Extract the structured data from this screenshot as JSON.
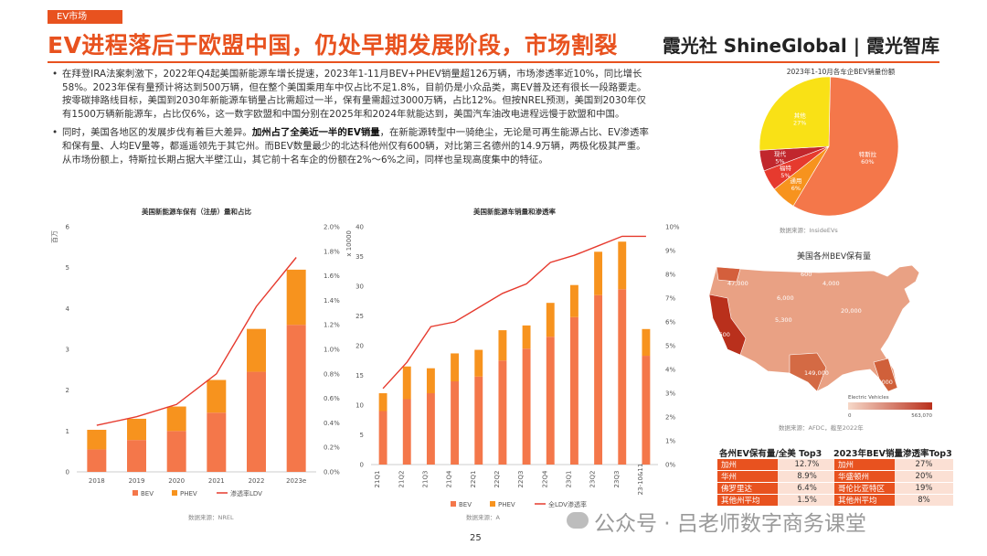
{
  "header": {
    "tag": "EV市场",
    "title": "EV进程落后于欧盟中国，仍处早期发展阶段，市场割裂",
    "brand": "霞光社 ShineGlobal | 霞光智库"
  },
  "bullets": [
    {
      "pre": "在拜登IRA法案刺激下，2022年Q4起美国新能源车增长提速，2023年1-11月BEV+PHEV销量超126万辆，市场渗透率近10%，同比增长58%。2023年保有量预计将达到500万辆，但在整个美国乘用车中仅占比不足1.8%，目前仍是小众品类，离EV普及还有很长一段路要走。按零碳排路线目标，美国到2030年新能源车销量占比需超过一半，保有量需超过3000万辆，占比12%。但按NREL预测，美国到2030年仅有1500万辆新能源车，占比仅6%，这一数字欧盟和中国分别在2025年和2024年就能达到，美国汽车油改电进程远慢于欧盟和中国。",
      "bold": "",
      "post": ""
    },
    {
      "pre": "同时，美国各地区的发展步伐有着巨大差异。",
      "bold": "加州占了全美近一半的EV销量",
      "post": "，在新能源转型中一骑绝尘，无论是可再生能源占比、EV渗透率和保有量、人均EV量等，都遥遥领先于其它州。而BEV数量最少的北达科他州仅有600辆，对比第三名德州的14.9万辆，两极化极其严重。从市场份额上，特斯拉长期占据大半壁江山，其它前十名车企的份额在2%～6%之间，同样也呈现高度集中的特征。"
    }
  ],
  "chart_data": [
    {
      "type": "bar",
      "title": "美国新能源车保有（注册）量和占比",
      "ylabel": "百万",
      "stacked": true,
      "categories": [
        "2018",
        "2019",
        "2020",
        "2021",
        "2022",
        "2023e"
      ],
      "series": [
        {
          "name": "BEV",
          "color": "#f4774a",
          "values": [
            0.55,
            0.78,
            1.0,
            1.45,
            2.45,
            3.6
          ]
        },
        {
          "name": "PHEV",
          "color": "#f7931e",
          "values": [
            0.48,
            0.52,
            0.6,
            0.8,
            1.05,
            1.35
          ]
        },
        {
          "name": "渗透率LDV",
          "color": "#e63a2e",
          "axis": "right",
          "values": [
            0.38,
            0.45,
            0.55,
            0.8,
            1.35,
            1.75
          ]
        }
      ],
      "ylim": [
        0,
        6
      ],
      "y_ticks": [
        "0",
        "1",
        "2",
        "3",
        "4",
        "5",
        "6"
      ],
      "y2lim": [
        0,
        2.0
      ],
      "y2_ticks": [
        "0.0%",
        "0.2%",
        "0.4%",
        "0.6%",
        "0.8%",
        "1.0%",
        "1.2%",
        "1.4%",
        "1.6%",
        "1.8%",
        "2.0%"
      ],
      "legend_position": "bottom",
      "source": "数据来源：NREL"
    },
    {
      "type": "bar",
      "title": "美国新能源车销量和渗透率",
      "ylabel": "x 10000",
      "stacked": true,
      "categories": [
        "21Q1",
        "21Q2",
        "21Q3",
        "21Q4",
        "22Q1",
        "22Q2",
        "22Q3",
        "22Q4",
        "23Q1",
        "23Q2",
        "23Q3",
        "23-10&11"
      ],
      "series": [
        {
          "name": "BEV",
          "color": "#f4774a",
          "values": [
            9.0,
            11.0,
            12.0,
            14.0,
            14.8,
            17.5,
            19.5,
            21.5,
            24.8,
            28.5,
            29.5,
            18.3
          ]
        },
        {
          "name": "PHEV",
          "color": "#f7931e",
          "values": [
            3.0,
            5.5,
            4.2,
            4.7,
            4.5,
            5.1,
            3.9,
            5.7,
            5.4,
            7.3,
            8.0,
            4.5
          ]
        },
        {
          "name": "全LDV渗透率",
          "color": "#e63a2e",
          "axis": "right",
          "values": [
            3.2,
            4.3,
            5.8,
            6.0,
            6.6,
            7.2,
            7.6,
            8.5,
            8.8,
            9.2,
            9.6,
            9.6
          ]
        }
      ],
      "ylim": [
        0,
        40
      ],
      "y_ticks": [
        "0",
        "5",
        "10",
        "15",
        "20",
        "25",
        "30",
        "35",
        "40"
      ],
      "y2lim": [
        0,
        10
      ],
      "y2_ticks": [
        "0%",
        "1%",
        "2%",
        "3%",
        "4%",
        "5%",
        "6%",
        "7%",
        "8%",
        "9%",
        "10%"
      ],
      "legend_position": "bottom",
      "source": "数据来源：A"
    },
    {
      "type": "pie",
      "title": "2023年1-10月各车企BEV销量份额",
      "slices": [
        {
          "label": "特斯拉",
          "value": 60,
          "text": "60%",
          "color": "#f4774a"
        },
        {
          "label": "通用",
          "value": 6,
          "text": "6%",
          "color": "#f7931e"
        },
        {
          "label": "福特",
          "value": 5,
          "text": "5%",
          "color": "#e63a2e"
        },
        {
          "label": "现代",
          "value": 5,
          "text": "5%",
          "color": "#c1272d"
        },
        {
          "label": "其他",
          "value": 27,
          "text": "27%",
          "color": "#f9e116"
        }
      ],
      "source": "数据来源：InsideEVs"
    }
  ],
  "map": {
    "title": "美国各州BEV保有量",
    "labels": [
      "47,000",
      "600",
      "6,000",
      "4,000",
      "5,300",
      "20,000",
      "403,600",
      "149,000",
      "168,000"
    ],
    "legend_label": "Electric Vehicles",
    "legend_min": "0",
    "legend_max": "563,070",
    "source": "数据来源：AFDC，截至2022年"
  },
  "tables": {
    "left": {
      "title": "各州EV保有量/全美 Top3",
      "rows": [
        {
          "name": "加州",
          "value": "12.7%"
        },
        {
          "name": "华州",
          "value": "8.9%"
        },
        {
          "name": "佛罗里达",
          "value": "6.4%"
        },
        {
          "name": "其他州平均",
          "value": "1.5%"
        }
      ]
    },
    "right": {
      "title": "2023年BEV销量渗透率Top3",
      "rows": [
        {
          "name": "加州",
          "value": "27%"
        },
        {
          "name": "华盛顿州",
          "value": "20%"
        },
        {
          "name": "哥伦比亚特区",
          "value": "19%"
        },
        {
          "name": "其他州平均",
          "value": "8%"
        }
      ]
    }
  },
  "footer": {
    "page": "25",
    "watermark": "公众号 · 吕老师数字商务课堂"
  },
  "colors": {
    "accent": "#e8521f",
    "bev": "#f4774a",
    "phev": "#f7931e",
    "line": "#e63a2e"
  }
}
